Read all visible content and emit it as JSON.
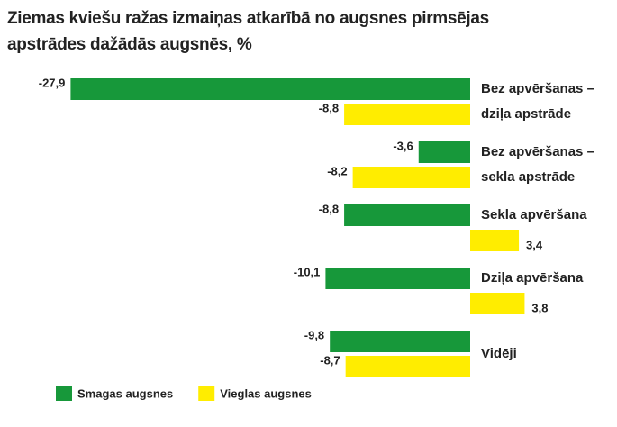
{
  "chart_data": {
    "type": "bar",
    "orientation": "horizontal",
    "title": "Ziemas kviešu ražas izmaiņas atkarībā no augsnes pirmsējas apstrādes dažādās augsnēs, %",
    "categories": [
      [
        "Bez apvēršanas –",
        "dziļa apstrāde"
      ],
      [
        "Bez apvēršanas –",
        "sekla apstrāde"
      ],
      [
        "Sekla apvēršana"
      ],
      [
        "Dziļa apvēršana"
      ],
      [
        "Vidēji"
      ]
    ],
    "series": [
      {
        "name": "Smagas augsnes",
        "color": "#17983a",
        "values": [
          -27.9,
          -3.6,
          -8.8,
          -10.1,
          -9.8
        ],
        "value_labels": [
          "-27,9",
          "-3,6",
          "-8,8",
          "-10,1",
          "-9,8"
        ]
      },
      {
        "name": "Vieglas augsnes",
        "color": "#ffed00",
        "values": [
          -8.8,
          -8.2,
          3.4,
          3.8,
          -8.7
        ],
        "value_labels": [
          "-8,8",
          "-8,2",
          "3,4",
          "3,8",
          "-8,7"
        ]
      }
    ],
    "legend": "bottom-left"
  }
}
